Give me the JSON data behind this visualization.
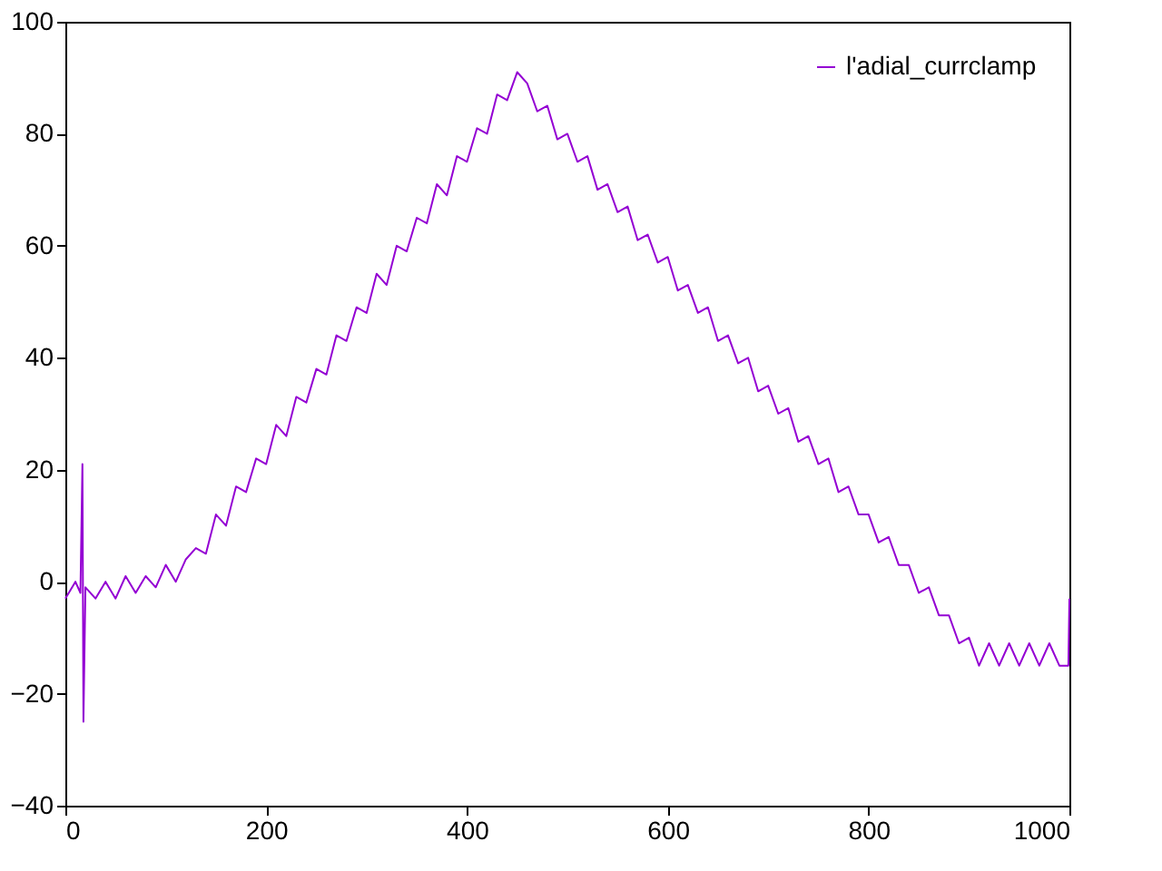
{
  "chart_data": {
    "type": "line",
    "xlim": [
      0,
      1000
    ],
    "ylim": [
      -40,
      100
    ],
    "xticks": [
      0,
      200,
      400,
      600,
      800,
      1000
    ],
    "yticks": [
      -40,
      -20,
      0,
      20,
      40,
      60,
      80,
      100
    ],
    "grid": false,
    "legend": "top right",
    "marker": "none",
    "line_style": "solid",
    "x": [
      0,
      10,
      15,
      17,
      18,
      20,
      30,
      40,
      50,
      60,
      70,
      80,
      90,
      100,
      110,
      120,
      130,
      140,
      150,
      160,
      170,
      180,
      190,
      200,
      210,
      220,
      230,
      240,
      250,
      260,
      270,
      280,
      290,
      300,
      310,
      320,
      330,
      340,
      350,
      360,
      370,
      380,
      390,
      400,
      410,
      420,
      430,
      440,
      450,
      460,
      470,
      480,
      490,
      500,
      510,
      520,
      530,
      540,
      550,
      560,
      570,
      580,
      590,
      600,
      610,
      620,
      630,
      640,
      650,
      660,
      670,
      680,
      690,
      700,
      710,
      720,
      730,
      740,
      750,
      760,
      770,
      780,
      790,
      800,
      810,
      820,
      830,
      840,
      850,
      860,
      870,
      880,
      890,
      900,
      910,
      920,
      930,
      940,
      950,
      960,
      970,
      980,
      990,
      999,
      1000
    ],
    "series": [
      {
        "name": "l'adial_currclamp",
        "color": "#9400d3",
        "values": [
          -3,
          0,
          -2,
          21,
          -25,
          -1,
          -3,
          0,
          -3,
          1,
          -2,
          1,
          -1,
          3,
          0,
          4,
          6,
          5,
          12,
          10,
          17,
          16,
          22,
          21,
          28,
          26,
          33,
          32,
          38,
          37,
          44,
          43,
          49,
          48,
          55,
          53,
          60,
          59,
          65,
          64,
          71,
          69,
          76,
          75,
          81,
          80,
          87,
          86,
          91,
          89,
          84,
          85,
          79,
          80,
          75,
          76,
          70,
          71,
          66,
          67,
          61,
          62,
          57,
          58,
          52,
          53,
          48,
          49,
          43,
          44,
          39,
          40,
          34,
          35,
          30,
          31,
          25,
          26,
          21,
          22,
          16,
          17,
          12,
          12,
          7,
          8,
          3,
          3,
          -2,
          -1,
          -6,
          -6,
          -11,
          -10,
          -15,
          -11,
          -15,
          -11,
          -15,
          -11,
          -15,
          -11,
          -15,
          -15,
          -3
        ]
      }
    ]
  }
}
